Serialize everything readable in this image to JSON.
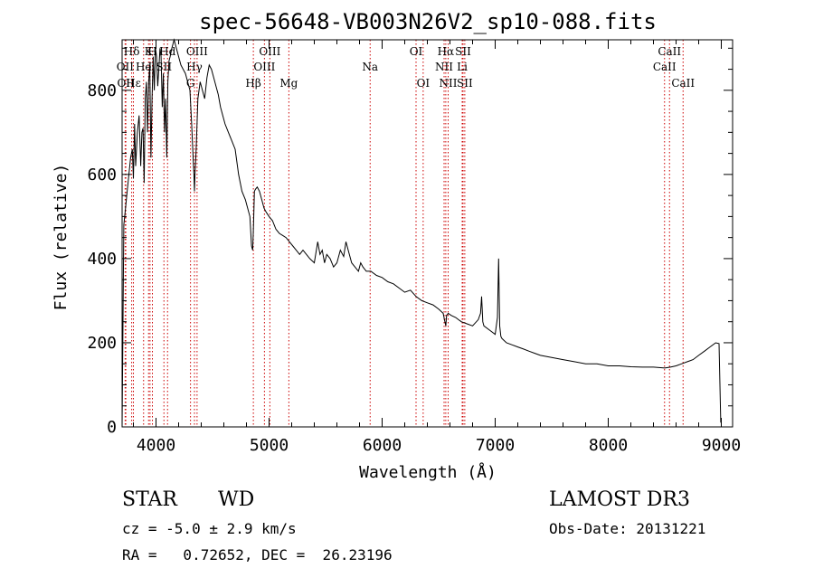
{
  "chart_data": {
    "type": "line",
    "title": "spec-56648-VB003N26V2_sp10-088.fits",
    "xlabel": "Wavelength (Å)",
    "ylabel": "Flux (relative)",
    "xlim": [
      3700,
      9100
    ],
    "ylim": [
      0,
      920
    ],
    "x_ticks": [
      4000,
      5000,
      6000,
      7000,
      8000,
      9000
    ],
    "y_ticks": [
      0,
      200,
      400,
      600,
      800
    ],
    "x": [
      3700,
      3715,
      3730,
      3745,
      3760,
      3775,
      3790,
      3800,
      3810,
      3820,
      3835,
      3850,
      3865,
      3875,
      3885,
      3895,
      3905,
      3915,
      3925,
      3935,
      3945,
      3955,
      3965,
      3975,
      3985,
      3995,
      4005,
      4015,
      4025,
      4035,
      4045,
      4055,
      4065,
      4075,
      4085,
      4095,
      4105,
      4115,
      4125,
      4140,
      4160,
      4180,
      4200,
      4220,
      4240,
      4260,
      4280,
      4300,
      4315,
      4325,
      4335,
      4340,
      4345,
      4355,
      4370,
      4390,
      4410,
      4430,
      4450,
      4470,
      4490,
      4510,
      4530,
      4550,
      4570,
      4590,
      4610,
      4640,
      4670,
      4700,
      4730,
      4760,
      4790,
      4810,
      4830,
      4845,
      4855,
      4862,
      4870,
      4880,
      4895,
      4915,
      4935,
      4955,
      4975,
      5000,
      5030,
      5060,
      5090,
      5120,
      5150,
      5180,
      5210,
      5240,
      5270,
      5300,
      5330,
      5360,
      5400,
      5430,
      5450,
      5470,
      5490,
      5510,
      5540,
      5570,
      5600,
      5630,
      5660,
      5680,
      5700,
      5730,
      5760,
      5790,
      5810,
      5830,
      5860,
      5900,
      5950,
      6000,
      6050,
      6100,
      6150,
      6200,
      6250,
      6300,
      6350,
      6400,
      6450,
      6500,
      6540,
      6555,
      6563,
      6570,
      6585,
      6610,
      6650,
      6700,
      6750,
      6800,
      6850,
      6870,
      6880,
      6890,
      6900,
      6950,
      7000,
      7020,
      7030,
      7040,
      7050,
      7060,
      7080,
      7100,
      7150,
      7200,
      7250,
      7300,
      7350,
      7400,
      7500,
      7600,
      7700,
      7800,
      7900,
      8000,
      8100,
      8200,
      8300,
      8400,
      8500,
      8550,
      8600,
      8650,
      8700,
      8750,
      8800,
      8850,
      8900,
      8950,
      8980,
      8995,
      9000
    ],
    "flux": [
      0,
      480,
      520,
      560,
      600,
      640,
      660,
      590,
      720,
      620,
      700,
      740,
      620,
      700,
      710,
      580,
      780,
      820,
      700,
      820,
      860,
      640,
      780,
      880,
      800,
      900,
      880,
      810,
      850,
      900,
      880,
      760,
      840,
      700,
      780,
      640,
      820,
      870,
      880,
      900,
      920,
      900,
      880,
      860,
      850,
      840,
      820,
      800,
      720,
      660,
      600,
      560,
      600,
      660,
      780,
      820,
      800,
      780,
      830,
      860,
      850,
      830,
      810,
      790,
      760,
      740,
      720,
      700,
      680,
      660,
      600,
      560,
      540,
      520,
      500,
      430,
      420,
      480,
      560,
      565,
      570,
      560,
      540,
      520,
      510,
      500,
      490,
      470,
      460,
      455,
      450,
      440,
      430,
      420,
      410,
      420,
      410,
      400,
      390,
      440,
      410,
      420,
      390,
      410,
      400,
      380,
      390,
      420,
      405,
      440,
      420,
      390,
      380,
      370,
      390,
      380,
      370,
      370,
      360,
      355,
      345,
      340,
      330,
      320,
      325,
      310,
      300,
      295,
      290,
      280,
      270,
      250,
      240,
      265,
      270,
      265,
      260,
      250,
      245,
      240,
      255,
      270,
      310,
      250,
      240,
      230,
      220,
      260,
      400,
      240,
      215,
      210,
      205,
      200,
      195,
      190,
      185,
      180,
      175,
      170,
      165,
      160,
      155,
      150,
      150,
      145,
      145,
      143,
      142,
      142,
      140,
      142,
      145,
      150,
      155,
      160,
      170,
      180,
      190,
      200,
      198,
      10
    ],
    "lines": [
      {
        "label": "Hδ",
        "x": 3785,
        "row": 1
      },
      {
        "label": "OII",
        "x": 3727,
        "row": 2
      },
      {
        "label": "Hε",
        "x": 3800,
        "row": 3
      },
      {
        "label": "OII",
        "x": 3733,
        "row": 3
      },
      {
        "label": "K",
        "x": 3934,
        "row": 1
      },
      {
        "label": "He",
        "x": 3890,
        "row": 2
      },
      {
        "label": "H",
        "x": 3968,
        "row": 1
      },
      {
        "label": "I",
        "x": 3947,
        "row": 2
      },
      {
        "label": "SII",
        "x": 4070,
        "row": 2
      },
      {
        "label": "Hd",
        "x": 4102,
        "row": 1
      },
      {
        "label": "G",
        "x": 4305,
        "row": 3
      },
      {
        "label": "Hγ",
        "x": 4340,
        "row": 2
      },
      {
        "label": "OIII",
        "x": 4363,
        "row": 1
      },
      {
        "label": "Hβ",
        "x": 4861,
        "row": 3
      },
      {
        "label": "OIII",
        "x": 4959,
        "row": 2
      },
      {
        "label": "OIII",
        "x": 5007,
        "row": 1
      },
      {
        "label": "Mg",
        "x": 5175,
        "row": 3
      },
      {
        "label": "Na",
        "x": 5894,
        "row": 2
      },
      {
        "label": "OI",
        "x": 6300,
        "row": 1
      },
      {
        "label": "OI",
        "x": 6363,
        "row": 3
      },
      {
        "label": "NII",
        "x": 6548,
        "row": 2
      },
      {
        "label": "NII",
        "x": 6584,
        "row": 3
      },
      {
        "label": "Hα",
        "x": 6563,
        "row": 1
      },
      {
        "label": "SII",
        "x": 6716,
        "row": 1
      },
      {
        "label": "Li",
        "x": 6708,
        "row": 2
      },
      {
        "label": "SII",
        "x": 6731,
        "row": 3
      },
      {
        "label": "CaII",
        "x": 8542,
        "row": 1
      },
      {
        "label": "CaII",
        "x": 8498,
        "row": 2
      },
      {
        "label": "CaII",
        "x": 8662,
        "row": 3
      }
    ],
    "line_color": "#cc0000"
  },
  "info": {
    "class": "STAR",
    "subclass": "WD",
    "survey": "LAMOST DR3",
    "cz": "cz = -5.0 ± 2.9 km/s",
    "obs_date": "Obs-Date: 20131221",
    "coords": "RA =   0.72652, DEC =  26.23196"
  }
}
